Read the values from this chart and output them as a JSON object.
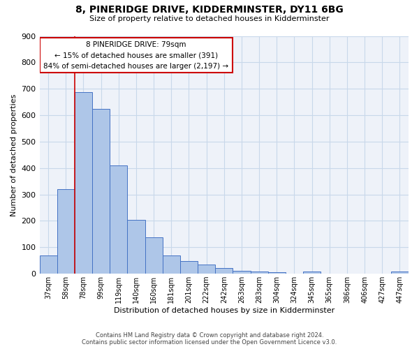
{
  "title": "8, PINERIDGE DRIVE, KIDDERMINSTER, DY11 6BG",
  "subtitle": "Size of property relative to detached houses in Kidderminster",
  "xlabel": "Distribution of detached houses by size in Kidderminster",
  "ylabel": "Number of detached properties",
  "footer_line1": "Contains HM Land Registry data © Crown copyright and database right 2024.",
  "footer_line2": "Contains public sector information licensed under the Open Government Licence v3.0.",
  "categories": [
    "37sqm",
    "58sqm",
    "78sqm",
    "99sqm",
    "119sqm",
    "140sqm",
    "160sqm",
    "181sqm",
    "201sqm",
    "222sqm",
    "242sqm",
    "263sqm",
    "283sqm",
    "304sqm",
    "324sqm",
    "345sqm",
    "365sqm",
    "386sqm",
    "406sqm",
    "427sqm",
    "447sqm"
  ],
  "values": [
    70,
    320,
    688,
    623,
    410,
    205,
    137,
    70,
    48,
    35,
    22,
    12,
    8,
    5,
    0,
    8,
    0,
    0,
    0,
    0,
    8
  ],
  "bar_color": "#aec6e8",
  "bar_edge_color": "#4472c4",
  "grid_color": "#c8d8ea",
  "annotation_box_color": "#cc0000",
  "annotation_text_line1": "8 PINERIDGE DRIVE: 79sqm",
  "annotation_text_line2": "← 15% of detached houses are smaller (391)",
  "annotation_text_line3": "84% of semi-detached houses are larger (2,197) →",
  "vline_color": "#cc0000",
  "vline_x_index": 2,
  "ylim": [
    0,
    900
  ],
  "yticks": [
    0,
    100,
    200,
    300,
    400,
    500,
    600,
    700,
    800,
    900
  ],
  "background_color": "#eef2f9"
}
